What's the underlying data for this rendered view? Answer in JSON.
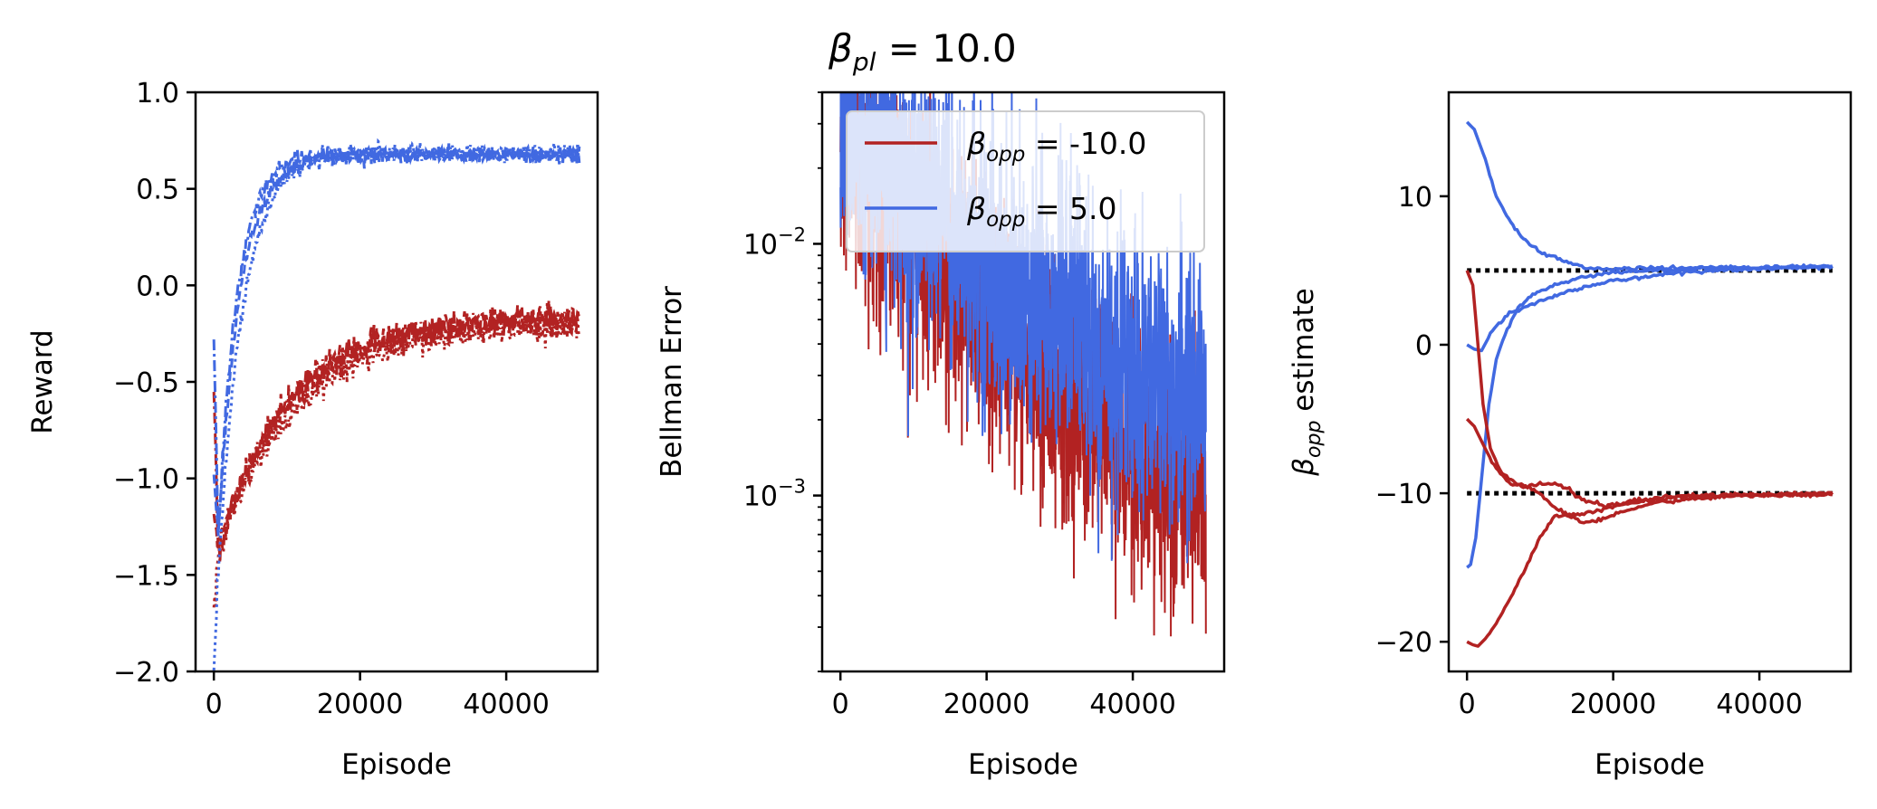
{
  "figure": {
    "title_main": "β",
    "title_sub": "pl",
    "title_rest": " = 10.0"
  },
  "chart_data": [
    {
      "type": "line",
      "panel": "left",
      "xlabel": "Episode",
      "ylabel": "Reward",
      "xlim": [
        -2500,
        52500
      ],
      "ylim": [
        -2.0,
        1.0
      ],
      "xticks": [
        0,
        20000,
        40000
      ],
      "xtick_labels": [
        "0",
        "20000",
        "40000"
      ],
      "yticks": [
        -2.0,
        -1.5,
        -1.0,
        -0.5,
        0.0,
        0.5,
        1.0
      ],
      "ytick_labels": [
        "−2.0",
        "−1.5",
        "−1.0",
        "−0.5",
        "0.0",
        "0.5",
        "1.0"
      ],
      "yscale": "linear",
      "series": [
        {
          "name": "red run 1",
          "color": "#b22222",
          "style": "dashdot",
          "model": {
            "start": -0.5,
            "min": -1.4,
            "final": -0.18,
            "tau": 9000,
            "noise": 0.035
          }
        },
        {
          "name": "red run 2",
          "color": "#b22222",
          "style": "dashed",
          "model": {
            "start": -1.2,
            "min": -1.35,
            "final": -0.16,
            "tau": 10000,
            "noise": 0.035
          }
        },
        {
          "name": "red run 3",
          "color": "#b22222",
          "style": "dotted",
          "model": {
            "start": -1.7,
            "min": -1.35,
            "final": -0.2,
            "tau": 11000,
            "noise": 0.035
          }
        },
        {
          "name": "blue run 1",
          "color": "#4169e1",
          "style": "dashdot",
          "model": {
            "start": -0.25,
            "min": -1.3,
            "final": 0.68,
            "tau": 2600,
            "noise": 0.02
          }
        },
        {
          "name": "blue run 2",
          "color": "#4169e1",
          "style": "dashed",
          "model": {
            "start": -1.0,
            "min": -1.3,
            "final": 0.67,
            "tau": 3000,
            "noise": 0.02
          }
        },
        {
          "name": "blue run 3",
          "color": "#4169e1",
          "style": "dotted",
          "model": {
            "start": -2.0,
            "min": -1.5,
            "final": 0.69,
            "tau": 3400,
            "noise": 0.02
          }
        }
      ]
    },
    {
      "type": "line",
      "panel": "middle",
      "xlabel": "Episode",
      "ylabel": "Bellman Error",
      "xlim": [
        -2500,
        52500
      ],
      "ylim": [
        0.0002,
        0.04
      ],
      "yscale": "log",
      "xticks": [
        0,
        20000,
        40000
      ],
      "xtick_labels": [
        "0",
        "20000",
        "40000"
      ],
      "yticks": [
        0.001,
        0.01
      ],
      "ytick_base": "10",
      "ytick_exponents": [
        "−3",
        "−2"
      ],
      "legend": {
        "location": "upper-left",
        "entries": [
          {
            "symbol": "β",
            "sub": "opp",
            "value": " = -10.0",
            "color": "#b22222"
          },
          {
            "symbol": "β",
            "sub": "opp",
            "value": " = 5.0",
            "color": "#4169e1"
          }
        ]
      },
      "series": [
        {
          "name": "β_opp = -10.0",
          "color": "#b22222",
          "model": {
            "start": 0.025,
            "end": 0.00055,
            "tau": 12000,
            "floor": 0.0004,
            "spread": 0.55
          }
        },
        {
          "name": "β_opp = 5.0",
          "color": "#4169e1",
          "model": {
            "start": 0.03,
            "end": 0.0018,
            "tau": 14000,
            "floor": 0.0012,
            "spread": 0.6
          }
        }
      ]
    },
    {
      "type": "line",
      "panel": "right",
      "xlabel": "Episode",
      "ylabel_symbol": "β",
      "ylabel_sub": "opp",
      "ylabel_rest": " estimate",
      "xlim": [
        -2500,
        52500
      ],
      "ylim": [
        -22,
        17
      ],
      "xticks": [
        0,
        20000,
        40000
      ],
      "xtick_labels": [
        "0",
        "20000",
        "40000"
      ],
      "yticks": [
        -20,
        -10,
        0,
        10
      ],
      "ytick_labels": [
        "−20",
        "−10",
        "0",
        "10"
      ],
      "yscale": "linear",
      "reference_lines": [
        {
          "y": 5,
          "x0": 0,
          "x1": 50000,
          "color": "#000000",
          "style": "dotted"
        },
        {
          "y": -10,
          "x0": 0,
          "x1": 50000,
          "color": "#000000",
          "style": "dotted"
        }
      ],
      "series": [
        {
          "name": "blue start 15",
          "color": "#4169e1",
          "points": [
            [
              0,
              15
            ],
            [
              1000,
              14.5
            ],
            [
              2500,
              12.5
            ],
            [
              4000,
              10
            ],
            [
              6000,
              8.2
            ],
            [
              8000,
              7
            ],
            [
              10000,
              6.3
            ],
            [
              13000,
              5.7
            ],
            [
              16000,
              5.2
            ],
            [
              20000,
              5.1
            ],
            [
              30000,
              5.2
            ],
            [
              40000,
              5.2
            ],
            [
              50000,
              5.3
            ]
          ]
        },
        {
          "name": "blue start 0",
          "color": "#4169e1",
          "points": [
            [
              0,
              0
            ],
            [
              1000,
              -0.3
            ],
            [
              2000,
              -0.4
            ],
            [
              3500,
              1
            ],
            [
              5500,
              2
            ],
            [
              8000,
              2.6
            ],
            [
              12000,
              3.3
            ],
            [
              16000,
              3.9
            ],
            [
              20000,
              4.3
            ],
            [
              25000,
              4.6
            ],
            [
              30000,
              4.9
            ],
            [
              40000,
              5.1
            ],
            [
              50000,
              5.3
            ]
          ]
        },
        {
          "name": "blue start -15",
          "color": "#4169e1",
          "points": [
            [
              0,
              -15
            ],
            [
              500,
              -14.8
            ],
            [
              1200,
              -13
            ],
            [
              2000,
              -9
            ],
            [
              3000,
              -4
            ],
            [
              4000,
              -1
            ],
            [
              5500,
              1
            ],
            [
              7000,
              2.5
            ],
            [
              9000,
              3.4
            ],
            [
              12000,
              4
            ],
            [
              16000,
              4.6
            ],
            [
              20000,
              4.9
            ],
            [
              30000,
              5.1
            ],
            [
              40000,
              5.2
            ],
            [
              50000,
              5.3
            ]
          ]
        },
        {
          "name": "red start 5",
          "color": "#b22222",
          "points": [
            [
              0,
              5
            ],
            [
              800,
              4
            ],
            [
              1500,
              0
            ],
            [
              2200,
              -4
            ],
            [
              3200,
              -7
            ],
            [
              4500,
              -8.5
            ],
            [
              6000,
              -9.1
            ],
            [
              8000,
              -9.5
            ],
            [
              10000,
              -10
            ],
            [
              12000,
              -11
            ],
            [
              14000,
              -11.5
            ],
            [
              16000,
              -11.4
            ],
            [
              19000,
              -11
            ],
            [
              22000,
              -10.6
            ],
            [
              26000,
              -10.3
            ],
            [
              30000,
              -10.2
            ],
            [
              40000,
              -10.1
            ],
            [
              50000,
              -10.1
            ]
          ]
        },
        {
          "name": "red start -5",
          "color": "#b22222",
          "points": [
            [
              0,
              -5
            ],
            [
              1000,
              -5.5
            ],
            [
              2500,
              -7
            ],
            [
              4000,
              -8.4
            ],
            [
              6000,
              -9.4
            ],
            [
              8000,
              -9.6
            ],
            [
              10000,
              -9.4
            ],
            [
              12000,
              -9.3
            ],
            [
              14000,
              -9.8
            ],
            [
              16000,
              -10.5
            ],
            [
              19000,
              -10.9
            ],
            [
              22000,
              -10.7
            ],
            [
              26000,
              -10.4
            ],
            [
              30000,
              -10.2
            ],
            [
              40000,
              -10.1
            ],
            [
              50000,
              -10
            ]
          ]
        },
        {
          "name": "red start -20",
          "color": "#b22222",
          "points": [
            [
              0,
              -20
            ],
            [
              800,
              -20.2
            ],
            [
              1500,
              -20.3
            ],
            [
              2500,
              -19.8
            ],
            [
              4000,
              -18.8
            ],
            [
              6000,
              -17
            ],
            [
              8000,
              -15
            ],
            [
              10000,
              -13
            ],
            [
              12000,
              -11.5
            ],
            [
              14000,
              -11.5
            ],
            [
              16000,
              -12
            ],
            [
              18000,
              -11.8
            ],
            [
              21000,
              -11.3
            ],
            [
              25000,
              -10.7
            ],
            [
              30000,
              -10.4
            ],
            [
              40000,
              -10.1
            ],
            [
              50000,
              -10.1
            ]
          ]
        }
      ]
    }
  ]
}
